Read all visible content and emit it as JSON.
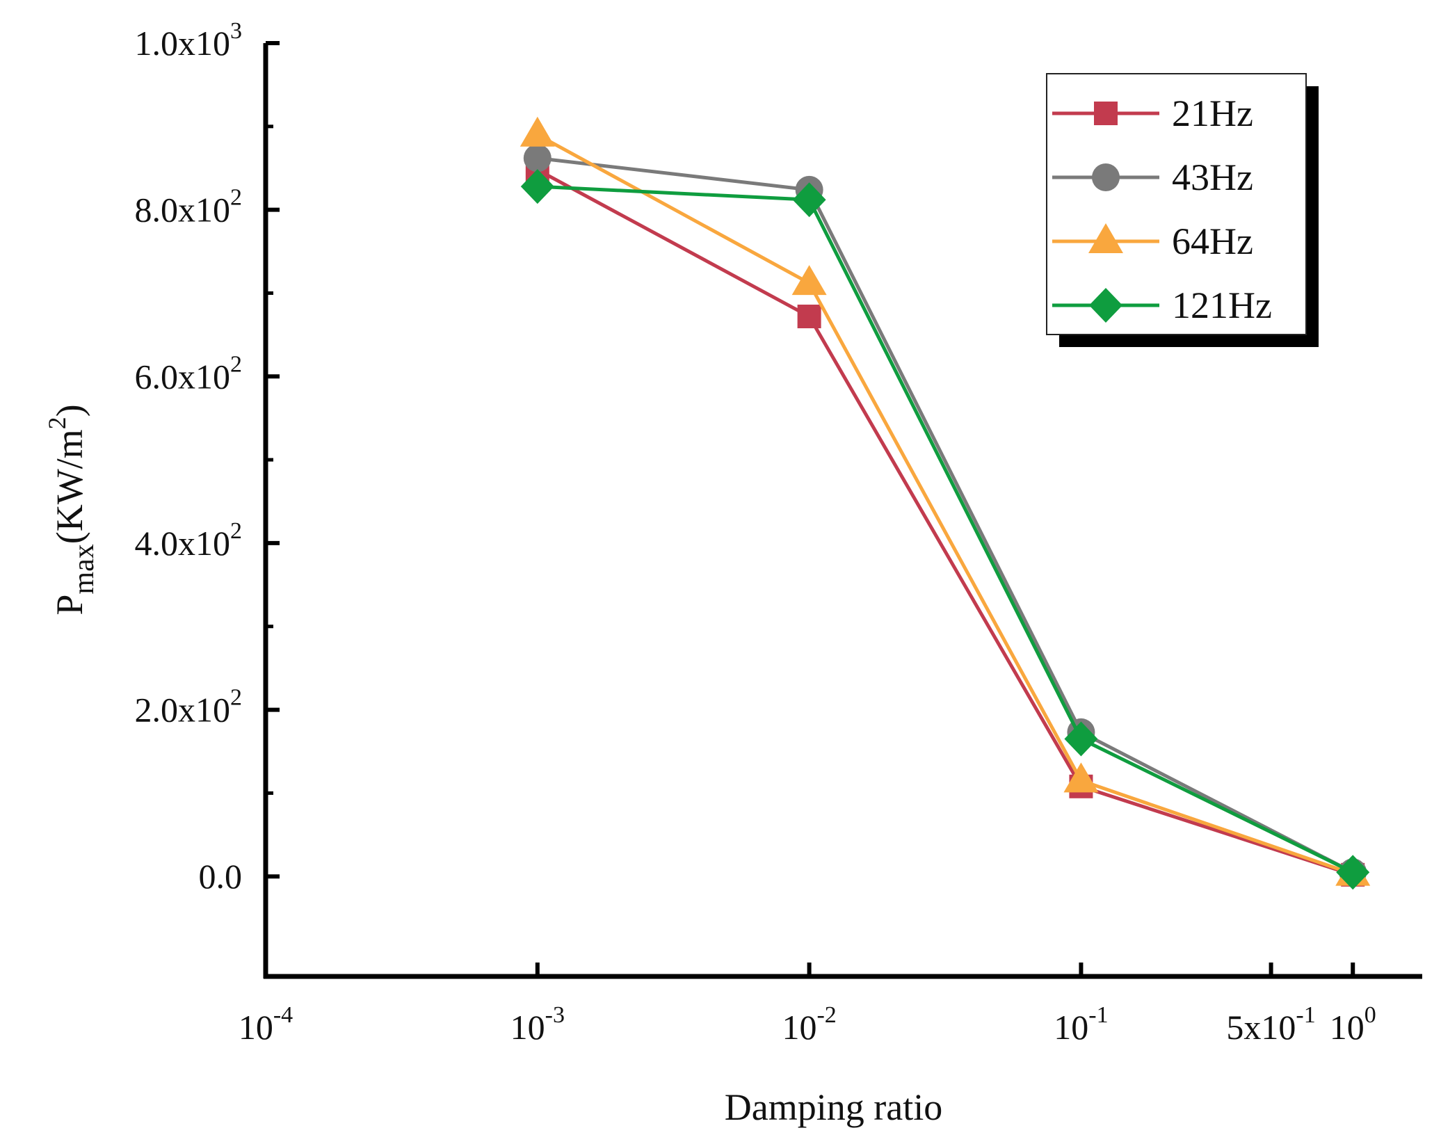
{
  "chart_data": {
    "type": "line",
    "xlabel": "Damping ratio",
    "ylabel": "P",
    "ylabel_sub": "max",
    "ylabel_unit": "(KW/m",
    "ylabel_unit_sup": "2",
    "ylabel_unit_close": ")",
    "x_scale": "log",
    "xlim": [
      0.0001,
      1.8
    ],
    "ylim": [
      -120,
      1000
    ],
    "x_ticks": [
      {
        "value": 0.0001,
        "base": "10",
        "exp": "-4"
      },
      {
        "value": 0.001,
        "base": "10",
        "exp": "-3"
      },
      {
        "value": 0.01,
        "base": "10",
        "exp": "-2"
      },
      {
        "value": 0.1,
        "base": "10",
        "exp": "-1"
      },
      {
        "value": 0.5,
        "base": "5x10",
        "exp": "-1"
      },
      {
        "value": 1,
        "base": "10",
        "exp": "0"
      }
    ],
    "y_ticks": [
      {
        "value": 0,
        "base": "0.0",
        "exp": ""
      },
      {
        "value": 200,
        "base": "2.0x10",
        "exp": "2"
      },
      {
        "value": 400,
        "base": "4.0x10",
        "exp": "2"
      },
      {
        "value": 600,
        "base": "6.0x10",
        "exp": "2"
      },
      {
        "value": 800,
        "base": "8.0x10",
        "exp": "2"
      },
      {
        "value": 1000,
        "base": "1.0x10",
        "exp": "3"
      }
    ],
    "y_minor_ticks": [
      100,
      300,
      500,
      700,
      900
    ],
    "x": [
      0.001,
      0.01,
      0.1,
      1
    ],
    "series": [
      {
        "name": "21Hz",
        "marker": "square",
        "color": "#c23b4e",
        "values": [
          848,
          672,
          108,
          2
        ]
      },
      {
        "name": "43Hz",
        "marker": "circle",
        "color": "#7a7a7a",
        "values": [
          862,
          824,
          173,
          5
        ]
      },
      {
        "name": "64Hz",
        "marker": "triangle",
        "color": "#f9a73e",
        "values": [
          890,
          712,
          115,
          3
        ]
      },
      {
        "name": "121Hz",
        "marker": "diamond",
        "color": "#0f9d3f",
        "values": [
          828,
          812,
          165,
          5
        ]
      }
    ],
    "legend_position": "top-right",
    "grid": false
  }
}
